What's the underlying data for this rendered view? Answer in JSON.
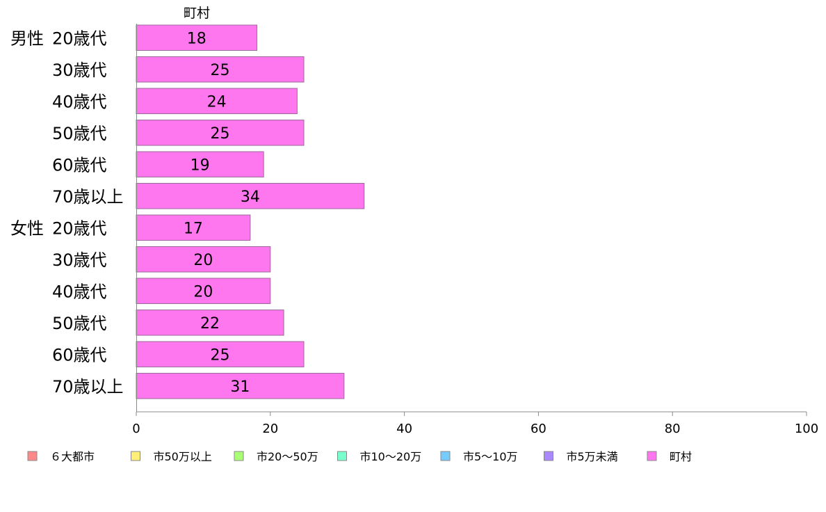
{
  "chart_data": {
    "type": "bar",
    "orientation": "horizontal",
    "series_title": "町村",
    "groups": [
      {
        "label": "男性",
        "categories": [
          "20歳代",
          "30歳代",
          "40歳代",
          "50歳代",
          "60歳代",
          "70歳以上"
        ],
        "values": [
          18,
          25,
          24,
          25,
          19,
          34
        ]
      },
      {
        "label": "女性",
        "categories": [
          "20歳代",
          "30歳代",
          "40歳代",
          "50歳代",
          "60歳代",
          "70歳以上"
        ],
        "values": [
          17,
          20,
          20,
          22,
          25,
          31
        ]
      }
    ],
    "xlim": [
      0,
      100
    ],
    "xticks": [
      0,
      20,
      40,
      60,
      80,
      100
    ],
    "bar_color": "#ff77ee",
    "bar_stroke": "#9a6a9a",
    "grid": false,
    "legend_position": "bottom",
    "legend": [
      {
        "label": "６大都市",
        "color": "#ff8888"
      },
      {
        "label": "市50万以上",
        "color": "#ffee77"
      },
      {
        "label": "市20～50万",
        "color": "#aaff77"
      },
      {
        "label": "市10～20万",
        "color": "#77ffcc"
      },
      {
        "label": "市5～10万",
        "color": "#77ccff"
      },
      {
        "label": "市5万未満",
        "color": "#aa88ff"
      },
      {
        "label": "町村",
        "color": "#ff77ee"
      }
    ]
  }
}
